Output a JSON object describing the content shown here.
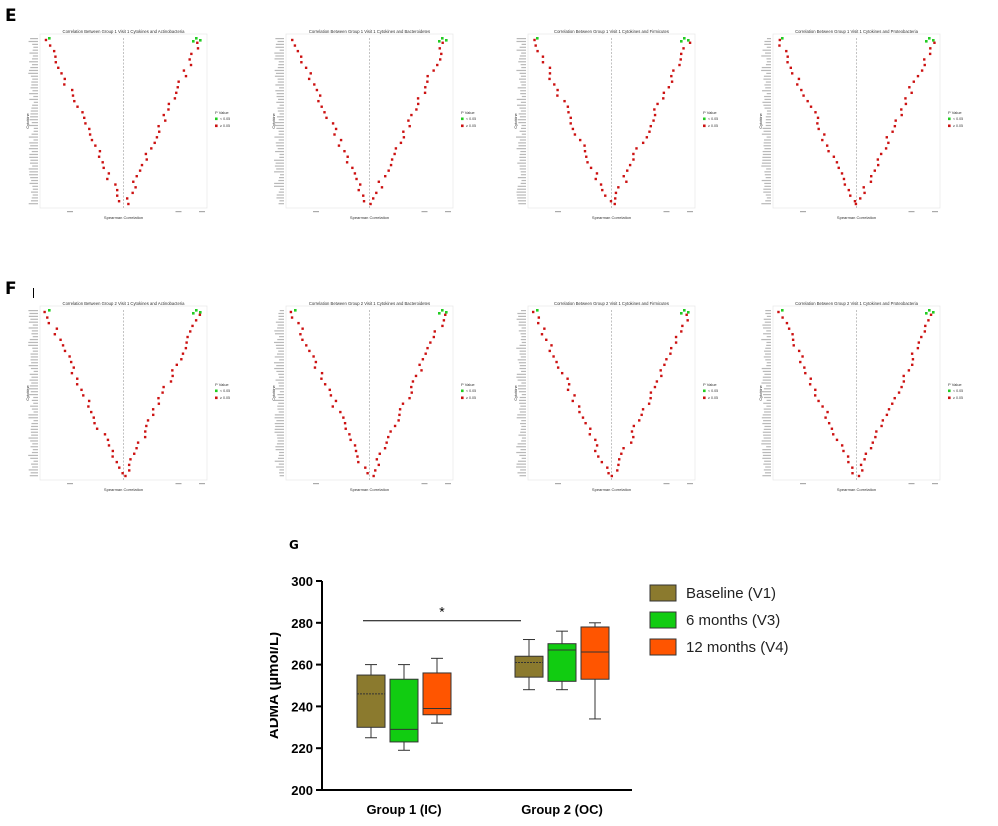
{
  "panels": {
    "E": {
      "letter": "E",
      "plots": [
        {
          "title": "Correlation Between Group 1 Visit 1 Cytokines and Actinobacteria",
          "ylabel": "Cytokine",
          "xlabel": "Spearman Correlation",
          "legend_title": "P Value",
          "legend": [
            "< 0.05",
            "≥ 0.05"
          ]
        },
        {
          "title": "Correlation Between Group 1 Visit 1 Cytokines and Bacteroidetes",
          "ylabel": "Cytokine",
          "xlabel": "Spearman Correlation",
          "legend_title": "P Value",
          "legend": [
            "< 0.05",
            "≥ 0.05"
          ]
        },
        {
          "title": "Correlation Between Group 1 Visit 1 Cytokines and Firmicutes",
          "ylabel": "Cytokine",
          "xlabel": "Spearman Correlation",
          "legend_title": "P Value",
          "legend": [
            "< 0.05",
            "≥ 0.05"
          ]
        },
        {
          "title": "Correlation Between Group 1 Visit 1 Cytokines and Proteobacteria",
          "ylabel": "Cytokine",
          "xlabel": "Spearman Correlation",
          "legend_title": "P Value",
          "legend": [
            "< 0.05",
            "≥ 0.05"
          ]
        }
      ]
    },
    "F": {
      "letter": "F",
      "plots": [
        {
          "title": "Correlation Between Group 2 Visit 1 Cytokines and Actinobacteria",
          "ylabel": "Cytokine",
          "xlabel": "Spearman Correlation",
          "legend_title": "P Value",
          "legend": [
            "< 0.05",
            "≥ 0.05"
          ]
        },
        {
          "title": "Correlation Between Group 2 Visit 1 Cytokines and Bacteroidetes",
          "ylabel": "Cytokine",
          "xlabel": "Spearman Correlation",
          "legend_title": "P Value",
          "legend": [
            "< 0.05",
            "≥ 0.05"
          ]
        },
        {
          "title": "Correlation Between Group 2 Visit 1 Cytokines and Firmicutes",
          "ylabel": "Cytokine",
          "xlabel": "Spearman Correlation",
          "legend_title": "P Value",
          "legend": [
            "< 0.05",
            "≥ 0.05"
          ]
        },
        {
          "title": "Correlation Between Group 2 Visit 1 Cytokines and Proteobacteria",
          "ylabel": "Cytokine",
          "xlabel": "Spearman Correlation",
          "legend_title": "P Value",
          "legend": [
            "< 0.05",
            "≥ 0.05"
          ]
        }
      ]
    },
    "G": {
      "letter": "G"
    }
  },
  "colors": {
    "significant": "#22cc22",
    "nonsignificant": "#cc1111",
    "baseline": "#8b7a2e",
    "m6": "#11cc11",
    "m12": "#ff5500"
  },
  "chart_data": [
    {
      "type": "box",
      "title": "",
      "ylabel": "ADMA (µmol/L)",
      "xlabel": "",
      "ylim": [
        200,
        300
      ],
      "yticks": [
        200,
        220,
        240,
        260,
        280,
        300
      ],
      "categories": [
        "Group 1 (IC)",
        "Group 2 (OC)"
      ],
      "legend_position": "right",
      "series": [
        {
          "name": "Baseline (V1)",
          "color": "#8b7a2e",
          "boxes": [
            {
              "min": 225,
              "q1": 230,
              "median": 246,
              "q3": 255,
              "max": 260
            },
            {
              "min": 248,
              "q1": 254,
              "median": 261,
              "q3": 264,
              "max": 272
            }
          ]
        },
        {
          "name": "6 months (V3)",
          "color": "#11cc11",
          "boxes": [
            {
              "min": 219,
              "q1": 223,
              "median": 229,
              "q3": 253,
              "max": 260
            },
            {
              "min": 248,
              "q1": 252,
              "median": 267,
              "q3": 270,
              "max": 276
            }
          ]
        },
        {
          "name": "12 months (V4)",
          "color": "#ff5500",
          "boxes": [
            {
              "min": 232,
              "q1": 236,
              "median": 239,
              "q3": 256,
              "max": 263
            },
            {
              "min": 234,
              "q1": 253,
              "median": 266,
              "q3": 278,
              "max": 280
            }
          ]
        }
      ],
      "annotation": {
        "text": "*",
        "from": "Group 1 (IC)",
        "to": "Group 2 (OC)",
        "y": 281
      }
    }
  ]
}
